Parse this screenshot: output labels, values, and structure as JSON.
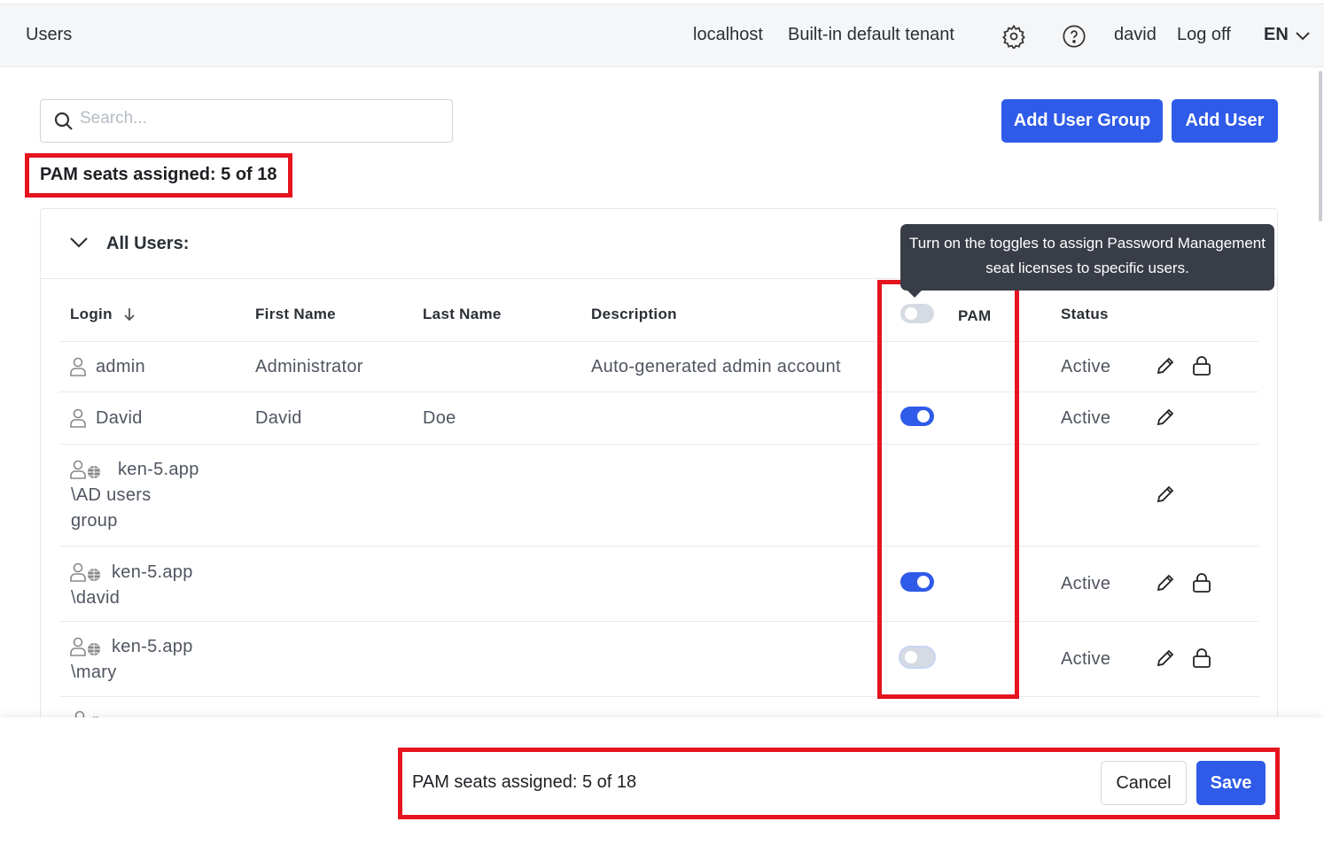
{
  "header": {
    "title": "Users",
    "host": "localhost",
    "tenant": "Built-in default tenant",
    "user": "david",
    "logoff": "Log off",
    "language": "EN"
  },
  "search": {
    "placeholder": "Search...",
    "value": ""
  },
  "buttons": {
    "add_group": "Add User Group",
    "add_user": "Add User",
    "cancel": "Cancel",
    "save": "Save"
  },
  "seats_text": "PAM seats assigned: 5 of 18",
  "group": {
    "label": "All Users:"
  },
  "tooltip": "Turn on the toggles to assign Password Management seat licenses to specific users.",
  "columns": {
    "login": "Login",
    "first": "First Name",
    "last": "Last Name",
    "description": "Description",
    "pam": "PAM",
    "status": "Status"
  },
  "rows": [
    {
      "login": "admin",
      "first": "Administrator",
      "last": "",
      "description": "Auto-generated admin account",
      "pam": null,
      "status": "Active",
      "lock": true,
      "icon": "user-icon"
    },
    {
      "login": "David",
      "first": "David",
      "last": "Doe",
      "description": "",
      "pam": true,
      "status": "Active",
      "lock": false,
      "icon": "user-icon"
    },
    {
      "login": "ken-5.app \\AD users group",
      "first": "",
      "last": "",
      "description": "",
      "pam": null,
      "status": "",
      "lock": false,
      "icon": "ad-group-icon"
    },
    {
      "login": "ken-5.app \\david",
      "first": "",
      "last": "",
      "description": "",
      "pam": true,
      "status": "Active",
      "lock": true,
      "icon": "ad-user-icon"
    },
    {
      "login": "ken-5.app \\mary",
      "first": "",
      "last": "",
      "description": "",
      "pam": false,
      "status": "Active",
      "lock": true,
      "icon": "ad-user-icon"
    }
  ],
  "colors": {
    "accent": "#2f5be8",
    "highlight": "#e5141f",
    "tooltip_bg": "#393d47"
  }
}
